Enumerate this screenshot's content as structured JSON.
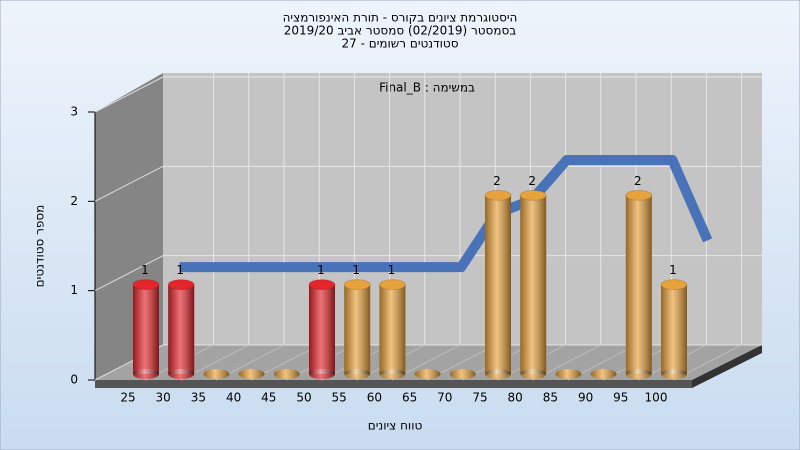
{
  "chart_data": {
    "type": "bar",
    "title": [
      "היסטוגרמת ציונים בקורס - תורת האינפורמציה",
      "בסמסטר  (02/2019)  סמסטר אביב 2019/20",
      "סטודנטים רשומים - 27"
    ],
    "subtitle": "במשימה : Final_B",
    "x_label": "טווח ציונים",
    "y_label": "מספר סטודנטים",
    "categories": [
      "25",
      "30",
      "35",
      "40",
      "45",
      "50",
      "55",
      "60",
      "65",
      "70",
      "75",
      "80",
      "85",
      "90",
      "95",
      "100"
    ],
    "values": [
      1,
      1,
      0,
      0,
      0,
      1,
      1,
      1,
      0,
      0,
      2,
      2,
      0,
      0,
      2,
      1
    ],
    "colors": [
      "#e3262b",
      "#e3262b",
      "#e8a23c",
      "#e8a23c",
      "#e8a23c",
      "#e3262b",
      "#e8a23c",
      "#e8a23c",
      "#e8a23c",
      "#e8a23c",
      "#e8a23c",
      "#e8a23c",
      "#e8a23c",
      "#e8a23c",
      "#e8a23c",
      "#e8a23c"
    ],
    "trend": [
      1,
      1,
      1,
      1,
      1,
      1,
      1,
      1,
      1,
      1.6,
      1.75,
      2.2,
      2.2,
      2.2,
      2.2,
      1.3
    ],
    "trend_color": "#4a72b8",
    "ylim": [
      0,
      3
    ],
    "yticks": [
      0,
      1,
      2,
      3
    ],
    "grid": true
  }
}
